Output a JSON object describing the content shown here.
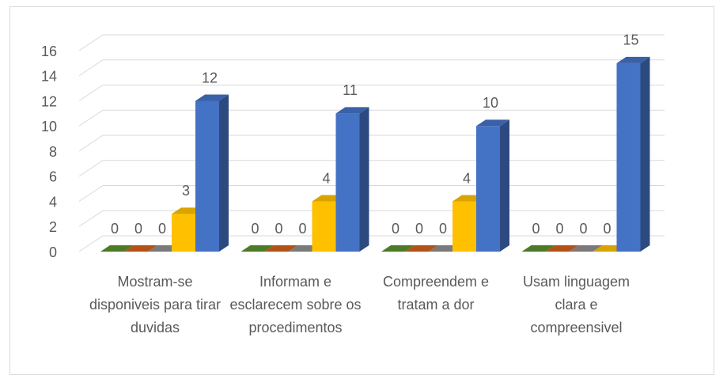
{
  "chart_data": {
    "type": "bar3d",
    "categories": [
      "Mostram-se disponiveis para tirar duvidas",
      "Informam e esclarecem sobre os procedimentos",
      "Compreendem e tratam a dor",
      "Usam linguagem clara e compreensivel"
    ],
    "series": [
      {
        "color": "#5b8f2d",
        "values": [
          0,
          0,
          0,
          0
        ]
      },
      {
        "color": "#d2601a",
        "values": [
          0,
          0,
          0,
          0
        ]
      },
      {
        "color": "#8f8f8f",
        "values": [
          0,
          0,
          0,
          0
        ]
      },
      {
        "color": "#ffc000",
        "values": [
          3,
          4,
          4,
          0
        ]
      },
      {
        "color": "#4472c4",
        "values": [
          12,
          11,
          10,
          15
        ]
      }
    ],
    "ylim": [
      0,
      16
    ],
    "yticks": [
      0,
      2,
      4,
      6,
      8,
      10,
      12,
      14,
      16
    ],
    "grid": true,
    "data_labels": true
  }
}
